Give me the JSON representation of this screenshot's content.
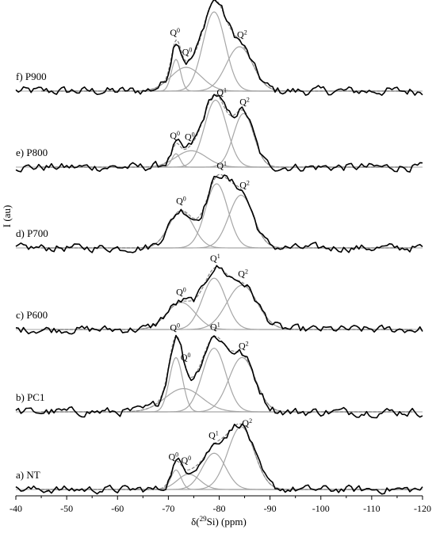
{
  "chart_data": {
    "type": "line",
    "xlabel": "δ(29Si) (ppm)",
    "ylabel": "I (au)",
    "xlim": [
      -40,
      -120
    ],
    "x_ticks": [
      -40,
      -50,
      -60,
      -70,
      -80,
      -90,
      -100,
      -110,
      -120
    ],
    "x_reversed": true,
    "grid": false,
    "legend": "none",
    "colors": {
      "experimental": "#000000",
      "fit": "#a6a6a6",
      "baseline": "#a6a6a6"
    },
    "series": [
      {
        "name": "f) P900",
        "components": [
          {
            "label": "Q0",
            "center": -71.5,
            "width": 0.9,
            "height": 0.4
          },
          {
            "label": "Q0",
            "center": -73.5,
            "width": 3.0,
            "height": 0.3
          },
          {
            "label": "Q1",
            "center": -79.0,
            "width": 2.2,
            "height": 1.0
          },
          {
            "label": "Q2",
            "center": -84.0,
            "width": 2.6,
            "height": 0.56
          }
        ],
        "label_ppm": {
          "Q0a": -71.3,
          "Q0b": -73.7,
          "Q1": -79.0,
          "Q2": -84.5
        }
      },
      {
        "name": "e) P800",
        "components": [
          {
            "label": "Q0",
            "center": -71.5,
            "width": 0.8,
            "height": 0.18
          },
          {
            "label": "Q0",
            "center": -74.5,
            "width": 3.0,
            "height": 0.22
          },
          {
            "label": "Q1",
            "center": -79.3,
            "width": 2.2,
            "height": 0.9
          },
          {
            "label": "Q2",
            "center": -84.8,
            "width": 2.0,
            "height": 0.72
          }
        ],
        "label_ppm": {
          "Q0a": -71.3,
          "Q0b": -74.2,
          "Q1": -80.5,
          "Q2": -85.0
        }
      },
      {
        "name": "d) P700",
        "components": [
          {
            "label": "Q0",
            "center": -72.5,
            "width": 2.4,
            "height": 0.52
          },
          {
            "label": "Q1",
            "center": -79.5,
            "width": 2.2,
            "height": 0.9
          },
          {
            "label": "Q2",
            "center": -84.3,
            "width": 2.4,
            "height": 0.74
          }
        ],
        "label_ppm": {
          "Q0": -72.5,
          "Q1": -80.5,
          "Q2": -85.0
        }
      },
      {
        "name": "c) P600",
        "components": [
          {
            "label": "Q0",
            "center": -72.5,
            "width": 2.8,
            "height": 0.38
          },
          {
            "label": "Q1",
            "center": -79.0,
            "width": 2.3,
            "height": 0.72
          },
          {
            "label": "Q2",
            "center": -84.5,
            "width": 3.0,
            "height": 0.62
          }
        ],
        "label_ppm": {
          "Q0": -72.5,
          "Q1": -79.2,
          "Q2": -84.7
        }
      },
      {
        "name": "b) PC1",
        "components": [
          {
            "label": "Q0",
            "center": -71.5,
            "width": 1.3,
            "height": 0.7
          },
          {
            "label": "Q0",
            "center": -73.0,
            "width": 3.6,
            "height": 0.3
          },
          {
            "label": "Q1",
            "center": -79.0,
            "width": 2.3,
            "height": 0.82
          },
          {
            "label": "Q2",
            "center": -84.5,
            "width": 2.6,
            "height": 0.7
          }
        ],
        "label_ppm": {
          "Q0a": -71.3,
          "Q0b": -73.4,
          "Q1": -79.2,
          "Q2": -84.8
        }
      },
      {
        "name": "a) NT",
        "components": [
          {
            "label": "Q0",
            "center": -71.5,
            "width": 1.0,
            "height": 0.28
          },
          {
            "label": "Q0",
            "center": -74.0,
            "width": 2.2,
            "height": 0.22
          },
          {
            "label": "Q1",
            "center": -79.0,
            "width": 2.3,
            "height": 0.52
          },
          {
            "label": "Q2",
            "center": -84.3,
            "width": 2.6,
            "height": 0.9
          }
        ],
        "label_ppm": {
          "Q0a": -71.0,
          "Q0b": -73.5,
          "Q1": -78.9,
          "Q2": -85.5
        }
      }
    ]
  },
  "axis": {
    "tick_labels": [
      "-40",
      "-50",
      "-60",
      "-70",
      "-80",
      "-90",
      "-100",
      "-110",
      "-120"
    ]
  },
  "panel_titles": [
    "f) P900",
    "e) P800",
    "d) P700",
    "c) P600",
    "b) PC1",
    "a) NT"
  ]
}
